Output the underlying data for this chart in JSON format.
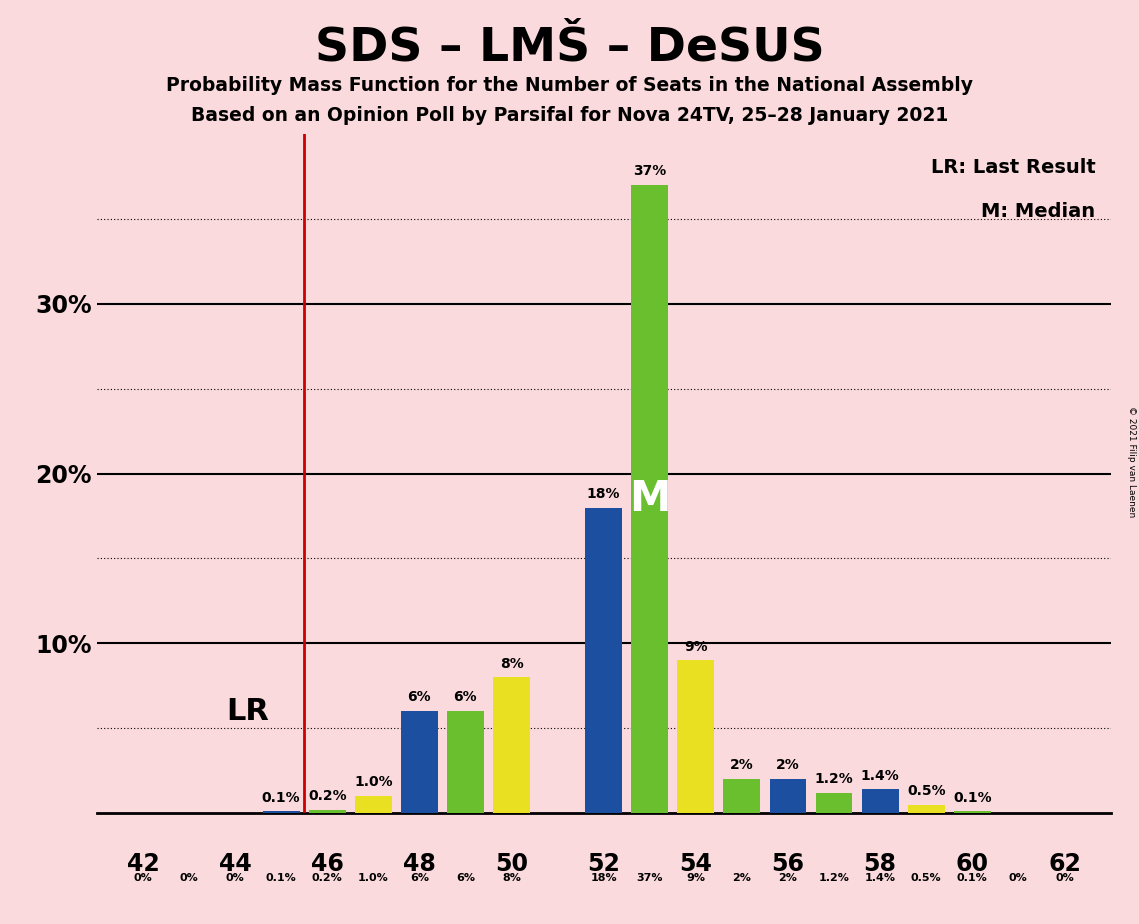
{
  "title": "SDS – LMŠ – DeSUS",
  "subtitle1": "Probability Mass Function for the Number of Seats in the National Assembly",
  "subtitle2": "Based on an Opinion Poll by Parsifal for Nova 24TV, 25–28 January 2021",
  "copyright": "© 2021 Filip van Laenen",
  "background_color": "#fadadd",
  "seats": [
    42,
    43,
    44,
    45,
    46,
    47,
    48,
    49,
    50,
    51,
    52,
    53,
    54,
    55,
    56,
    57,
    58,
    59,
    60,
    61,
    62
  ],
  "values": [
    0,
    0,
    0,
    0.1,
    0.2,
    1.0,
    6,
    6,
    8,
    0,
    18,
    37,
    9,
    2,
    2,
    1.2,
    1.4,
    0.5,
    0.1,
    0,
    0
  ],
  "colors": [
    "#1c4fa0",
    "#1c4fa0",
    "#1c4fa0",
    "#1c4fa0",
    "#6abf2e",
    "#e8e020",
    "#1c4fa0",
    "#6abf2e",
    "#e8e020",
    "#1c4fa0",
    "#1c4fa0",
    "#6abf2e",
    "#e8e020",
    "#6abf2e",
    "#1c4fa0",
    "#6abf2e",
    "#1c4fa0",
    "#e8e020",
    "#6abf2e",
    "#1c4fa0",
    "#1c4fa0"
  ],
  "bar_labels": [
    "",
    "",
    "",
    "0.1%",
    "0.2%",
    "1.0%",
    "6%",
    "6%",
    "8%",
    "",
    "18%",
    "37%",
    "9%",
    "2%",
    "2%",
    "1.2%",
    "1.4%",
    "0.5%",
    "0.1%",
    "",
    ""
  ],
  "bottom_labels": [
    "0%",
    "0%",
    "0%",
    "0.1%",
    "0.2%",
    "1.0%",
    "6%",
    "6%",
    "8%",
    "",
    "18%",
    "37%",
    "9%",
    "2%",
    "2%",
    "1.2%",
    "1.4%",
    "0.5%",
    "0.1%",
    "0%",
    "0%"
  ],
  "lr_x": 45.5,
  "lr_label": "LR",
  "median_seat": 53,
  "median_label": "M",
  "median_label_color": "#ffffff",
  "blue_color": "#1c4fa0",
  "green_color": "#6abf2e",
  "yellow_color": "#e8e020",
  "lr_color": "#cc0000",
  "bar_width": 0.8,
  "xlim": [
    41.0,
    63.0
  ],
  "ylim": [
    0,
    40
  ],
  "xticks": [
    42,
    44,
    46,
    48,
    50,
    52,
    54,
    56,
    58,
    60,
    62
  ],
  "major_yticks": [
    10,
    20,
    30
  ],
  "dotted_yticks": [
    5,
    15,
    25,
    35
  ],
  "lr_legend": "LR: Last Result",
  "median_legend": "M: Median"
}
